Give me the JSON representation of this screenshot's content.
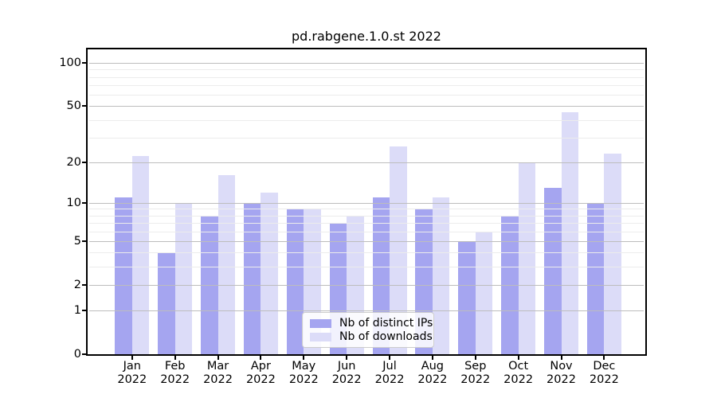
{
  "title": "pd.rabgene.1.0.st 2022",
  "colors": {
    "ips_bar": "#a5a5f0",
    "downloads_bar": "#dcdcf8",
    "major_grid": "#bdbdbd",
    "minor_grid": "#ececec",
    "axis": "#000000",
    "legend_border": "#cccccc",
    "background": "#ffffff"
  },
  "y_axis": {
    "tick_values": [
      0,
      1,
      2,
      5,
      10,
      20,
      50,
      100
    ],
    "tick_labels": [
      "0",
      "1",
      "2",
      "5",
      "10",
      "20",
      "50",
      "100"
    ],
    "major_gridlines": [
      1,
      2,
      5,
      10,
      20,
      50,
      100
    ],
    "minor_gridlines": [
      3,
      4,
      6,
      7,
      8,
      9,
      30,
      40,
      60,
      70,
      80,
      90
    ],
    "scale": "log1p"
  },
  "legend": {
    "position": "lower center",
    "items": [
      {
        "label": "Nb of distinct IPs",
        "color_key": "ips_bar"
      },
      {
        "label": "Nb of downloads",
        "color_key": "downloads_bar"
      }
    ]
  },
  "chart_data": {
    "type": "bar",
    "title": "pd.rabgene.1.0.st 2022",
    "categories": [
      "Jan",
      "Feb",
      "Mar",
      "Apr",
      "May",
      "Jun",
      "Jul",
      "Aug",
      "Sep",
      "Oct",
      "Nov",
      "Dec"
    ],
    "category_year": "2022",
    "series": [
      {
        "name": "Nb of distinct IPs",
        "color": "#a5a5f0",
        "values": [
          11,
          4,
          8,
          10,
          9,
          7,
          11,
          9,
          5,
          8,
          13,
          10
        ]
      },
      {
        "name": "Nb of downloads",
        "color": "#dcdcf8",
        "values": [
          22,
          10,
          16,
          12,
          9,
          8,
          26,
          11,
          6,
          20,
          45,
          23
        ]
      }
    ],
    "yscale": "log1p",
    "ylim": [
      0,
      124
    ],
    "y_ticks": [
      0,
      1,
      2,
      5,
      10,
      20,
      50,
      100
    ],
    "grid": true,
    "grid_above_bars": true,
    "legend_position": "lower center"
  }
}
